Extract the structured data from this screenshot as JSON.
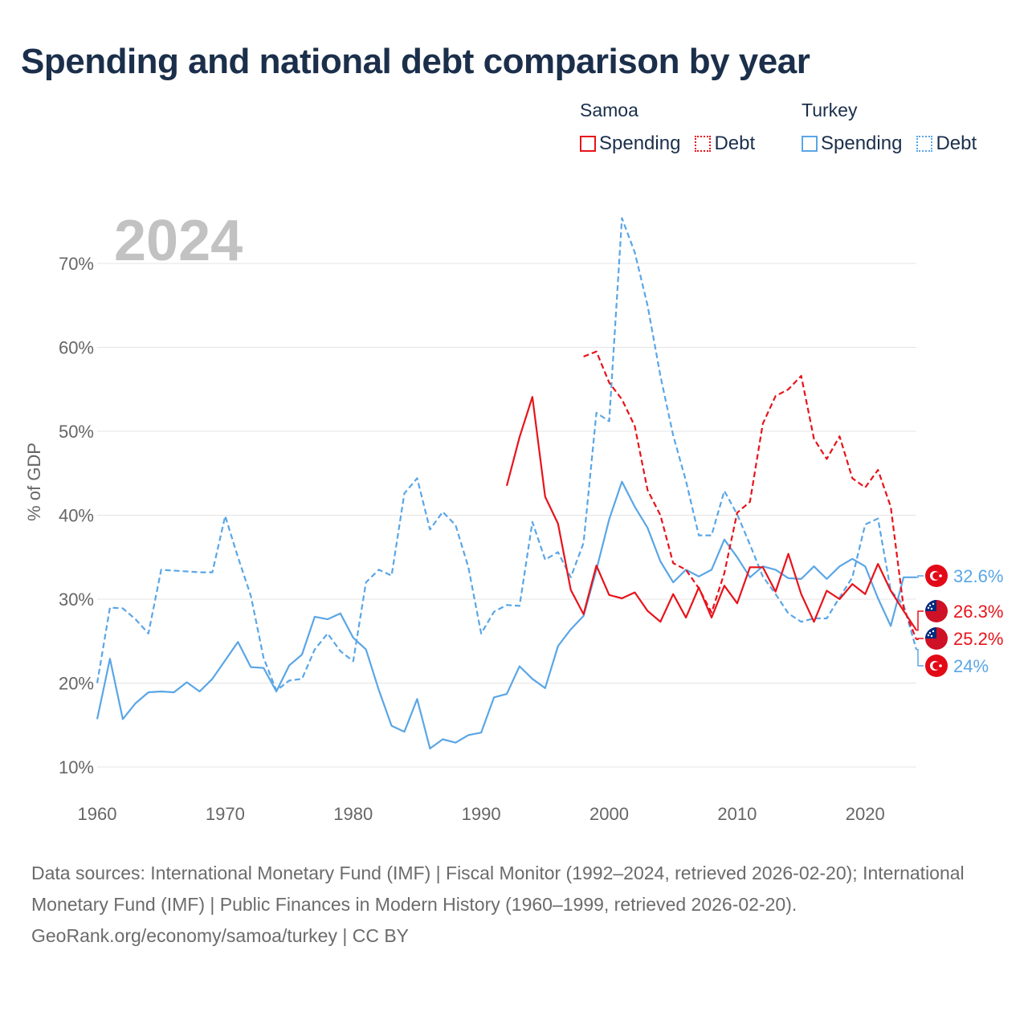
{
  "title": "Spending and national debt comparison by year",
  "legend": {
    "groups": [
      {
        "country": "Samoa",
        "spending_label": "Spending",
        "debt_label": "Debt",
        "color": "#e8131a"
      },
      {
        "country": "Turkey",
        "spending_label": "Spending",
        "debt_label": "Debt",
        "color": "#5aa6e6"
      }
    ]
  },
  "footer": {
    "sources": "Data sources: International Monetary Fund (IMF) | Fiscal Monitor (1992–2024, retrieved 2026-02-20); International Monetary Fund (IMF) | Public Finances in Modern History (1960–1999, retrieved 2026-02-20).",
    "credit": "GeoRank.org/economy/samoa/turkey | CC BY"
  },
  "chart_data": {
    "type": "line",
    "title": "Spending and national debt comparison by year",
    "year_watermark": "2024",
    "xlabel": "",
    "ylabel": "% of GDP",
    "xlim": [
      1960,
      2024
    ],
    "ylim": [
      8,
      76
    ],
    "x_ticks": [
      1960,
      1970,
      1980,
      1990,
      2000,
      2010,
      2020
    ],
    "y_ticks": [
      10,
      20,
      30,
      40,
      50,
      60,
      70
    ],
    "y_tick_labels": [
      "10%",
      "20%",
      "30%",
      "40%",
      "50%",
      "60%",
      "70%"
    ],
    "grid": true,
    "series": [
      {
        "name": "Turkey Debt",
        "country": "Turkey",
        "metric": "Debt",
        "style": "dashed",
        "color": "#5aa6e6",
        "x": [
          1960,
          1961,
          1962,
          1963,
          1964,
          1965,
          1966,
          1967,
          1968,
          1969,
          1970,
          1971,
          1972,
          1973,
          1974,
          1975,
          1976,
          1977,
          1978,
          1979,
          1980,
          1981,
          1982,
          1983,
          1984,
          1985,
          1986,
          1987,
          1988,
          1989,
          1990,
          1991,
          1992,
          1993,
          1994,
          1995,
          1996,
          1997,
          1998,
          1999,
          2000,
          2001,
          2002,
          2003,
          2004,
          2005,
          2006,
          2007,
          2008,
          2009,
          2010,
          2011,
          2012,
          2013,
          2014,
          2015,
          2016,
          2017,
          2018,
          2019,
          2020,
          2021,
          2022,
          2023,
          2024
        ],
        "values": [
          20.0,
          29.0,
          28.9,
          27.6,
          25.9,
          33.5,
          33.4,
          33.3,
          33.2,
          33.2,
          39.9,
          35.0,
          30.4,
          23.0,
          19.1,
          20.3,
          20.5,
          24.0,
          25.9,
          23.8,
          22.6,
          32.0,
          33.5,
          32.8,
          42.6,
          44.4,
          38.3,
          40.4,
          38.8,
          33.8,
          25.9,
          28.5,
          29.3,
          29.2,
          39.2,
          34.7,
          35.6,
          32.6,
          36.7,
          52.2,
          51.2,
          75.4,
          71.3,
          65.0,
          56.6,
          49.5,
          44.1,
          37.6,
          37.6,
          42.9,
          40.1,
          36.5,
          32.7,
          30.6,
          28.3,
          27.3,
          27.7,
          27.7,
          30.2,
          32.6,
          38.9,
          39.6,
          31.0,
          29.3,
          24.0
        ],
        "end_label": "24%",
        "flag": "Turkey"
      },
      {
        "name": "Turkey Spending",
        "country": "Turkey",
        "metric": "Spending",
        "style": "solid",
        "color": "#5aa6e6",
        "x": [
          1960,
          1961,
          1962,
          1963,
          1964,
          1965,
          1966,
          1967,
          1968,
          1969,
          1970,
          1971,
          1972,
          1973,
          1974,
          1975,
          1976,
          1977,
          1978,
          1979,
          1980,
          1981,
          1982,
          1983,
          1984,
          1985,
          1986,
          1987,
          1988,
          1989,
          1990,
          1991,
          1992,
          1993,
          1994,
          1995,
          1996,
          1997,
          1998,
          1999,
          2000,
          2001,
          2002,
          2003,
          2004,
          2005,
          2006,
          2007,
          2008,
          2009,
          2010,
          2011,
          2012,
          2013,
          2014,
          2015,
          2016,
          2017,
          2018,
          2019,
          2020,
          2021,
          2022,
          2023,
          2024
        ],
        "values": [
          15.7,
          22.9,
          15.7,
          17.6,
          18.9,
          19.0,
          18.9,
          20.1,
          19.0,
          20.5,
          22.7,
          24.9,
          21.9,
          21.8,
          19.0,
          22.1,
          23.4,
          27.9,
          27.6,
          28.3,
          25.4,
          24.0,
          19.2,
          14.9,
          14.2,
          18.1,
          12.2,
          13.3,
          12.9,
          13.8,
          14.1,
          18.3,
          18.7,
          22.0,
          20.5,
          19.4,
          24.4,
          26.4,
          28.0,
          33.5,
          39.5,
          44.0,
          41.0,
          38.5,
          34.5,
          32.0,
          33.5,
          32.7,
          33.5,
          37.1,
          35.0,
          32.6,
          33.9,
          33.5,
          32.5,
          32.4,
          33.9,
          32.4,
          33.9,
          34.8,
          33.9,
          30.1,
          26.8,
          32.6,
          32.6
        ],
        "end_label": "32.6%",
        "flag": "Turkey"
      },
      {
        "name": "Samoa Debt",
        "country": "Samoa",
        "metric": "Debt",
        "style": "dashed",
        "color": "#e8131a",
        "x": [
          1998,
          1999,
          2000,
          2001,
          2002,
          2003,
          2004,
          2005,
          2006,
          2007,
          2008,
          2009,
          2010,
          2011,
          2012,
          2013,
          2014,
          2015,
          2016,
          2017,
          2018,
          2019,
          2020,
          2021,
          2022,
          2023,
          2024
        ],
        "values": [
          58.9,
          59.5,
          55.8,
          53.8,
          50.6,
          43.0,
          40.0,
          34.3,
          33.5,
          31.3,
          28.4,
          33.1,
          40.3,
          41.6,
          50.9,
          54.2,
          55.0,
          56.6,
          49.1,
          46.7,
          49.4,
          44.4,
          43.3,
          45.4,
          41.0,
          29.0,
          25.2
        ],
        "end_label": "25.2%",
        "flag": "Samoa"
      },
      {
        "name": "Samoa Spending",
        "country": "Samoa",
        "metric": "Spending",
        "style": "solid",
        "color": "#e8131a",
        "x": [
          1992,
          1993,
          1994,
          1995,
          1996,
          1997,
          1998,
          1999,
          2000,
          2001,
          2002,
          2003,
          2004,
          2005,
          2006,
          2007,
          2008,
          2009,
          2010,
          2011,
          2012,
          2013,
          2014,
          2015,
          2016,
          2017,
          2018,
          2019,
          2020,
          2021,
          2022,
          2023,
          2024
        ],
        "values": [
          43.5,
          49.3,
          54.1,
          42.2,
          39.0,
          31.1,
          28.2,
          34.0,
          30.5,
          30.1,
          30.8,
          28.6,
          27.3,
          30.6,
          27.8,
          31.4,
          27.8,
          31.6,
          29.5,
          33.8,
          33.8,
          30.9,
          35.4,
          30.6,
          27.3,
          31.0,
          30.0,
          31.8,
          30.6,
          34.2,
          31.0,
          28.6,
          26.3
        ],
        "end_label": "26.3%",
        "flag": "Samoa"
      }
    ],
    "end_labels": [
      {
        "text": "32.6%",
        "country": "Turkey",
        "color": "#5aa6e6"
      },
      {
        "text": "26.3%",
        "country": "Samoa",
        "color": "#e8131a"
      },
      {
        "text": "25.2%",
        "country": "Samoa",
        "color": "#e8131a"
      },
      {
        "text": "24%",
        "country": "Turkey",
        "color": "#5aa6e6"
      }
    ]
  }
}
